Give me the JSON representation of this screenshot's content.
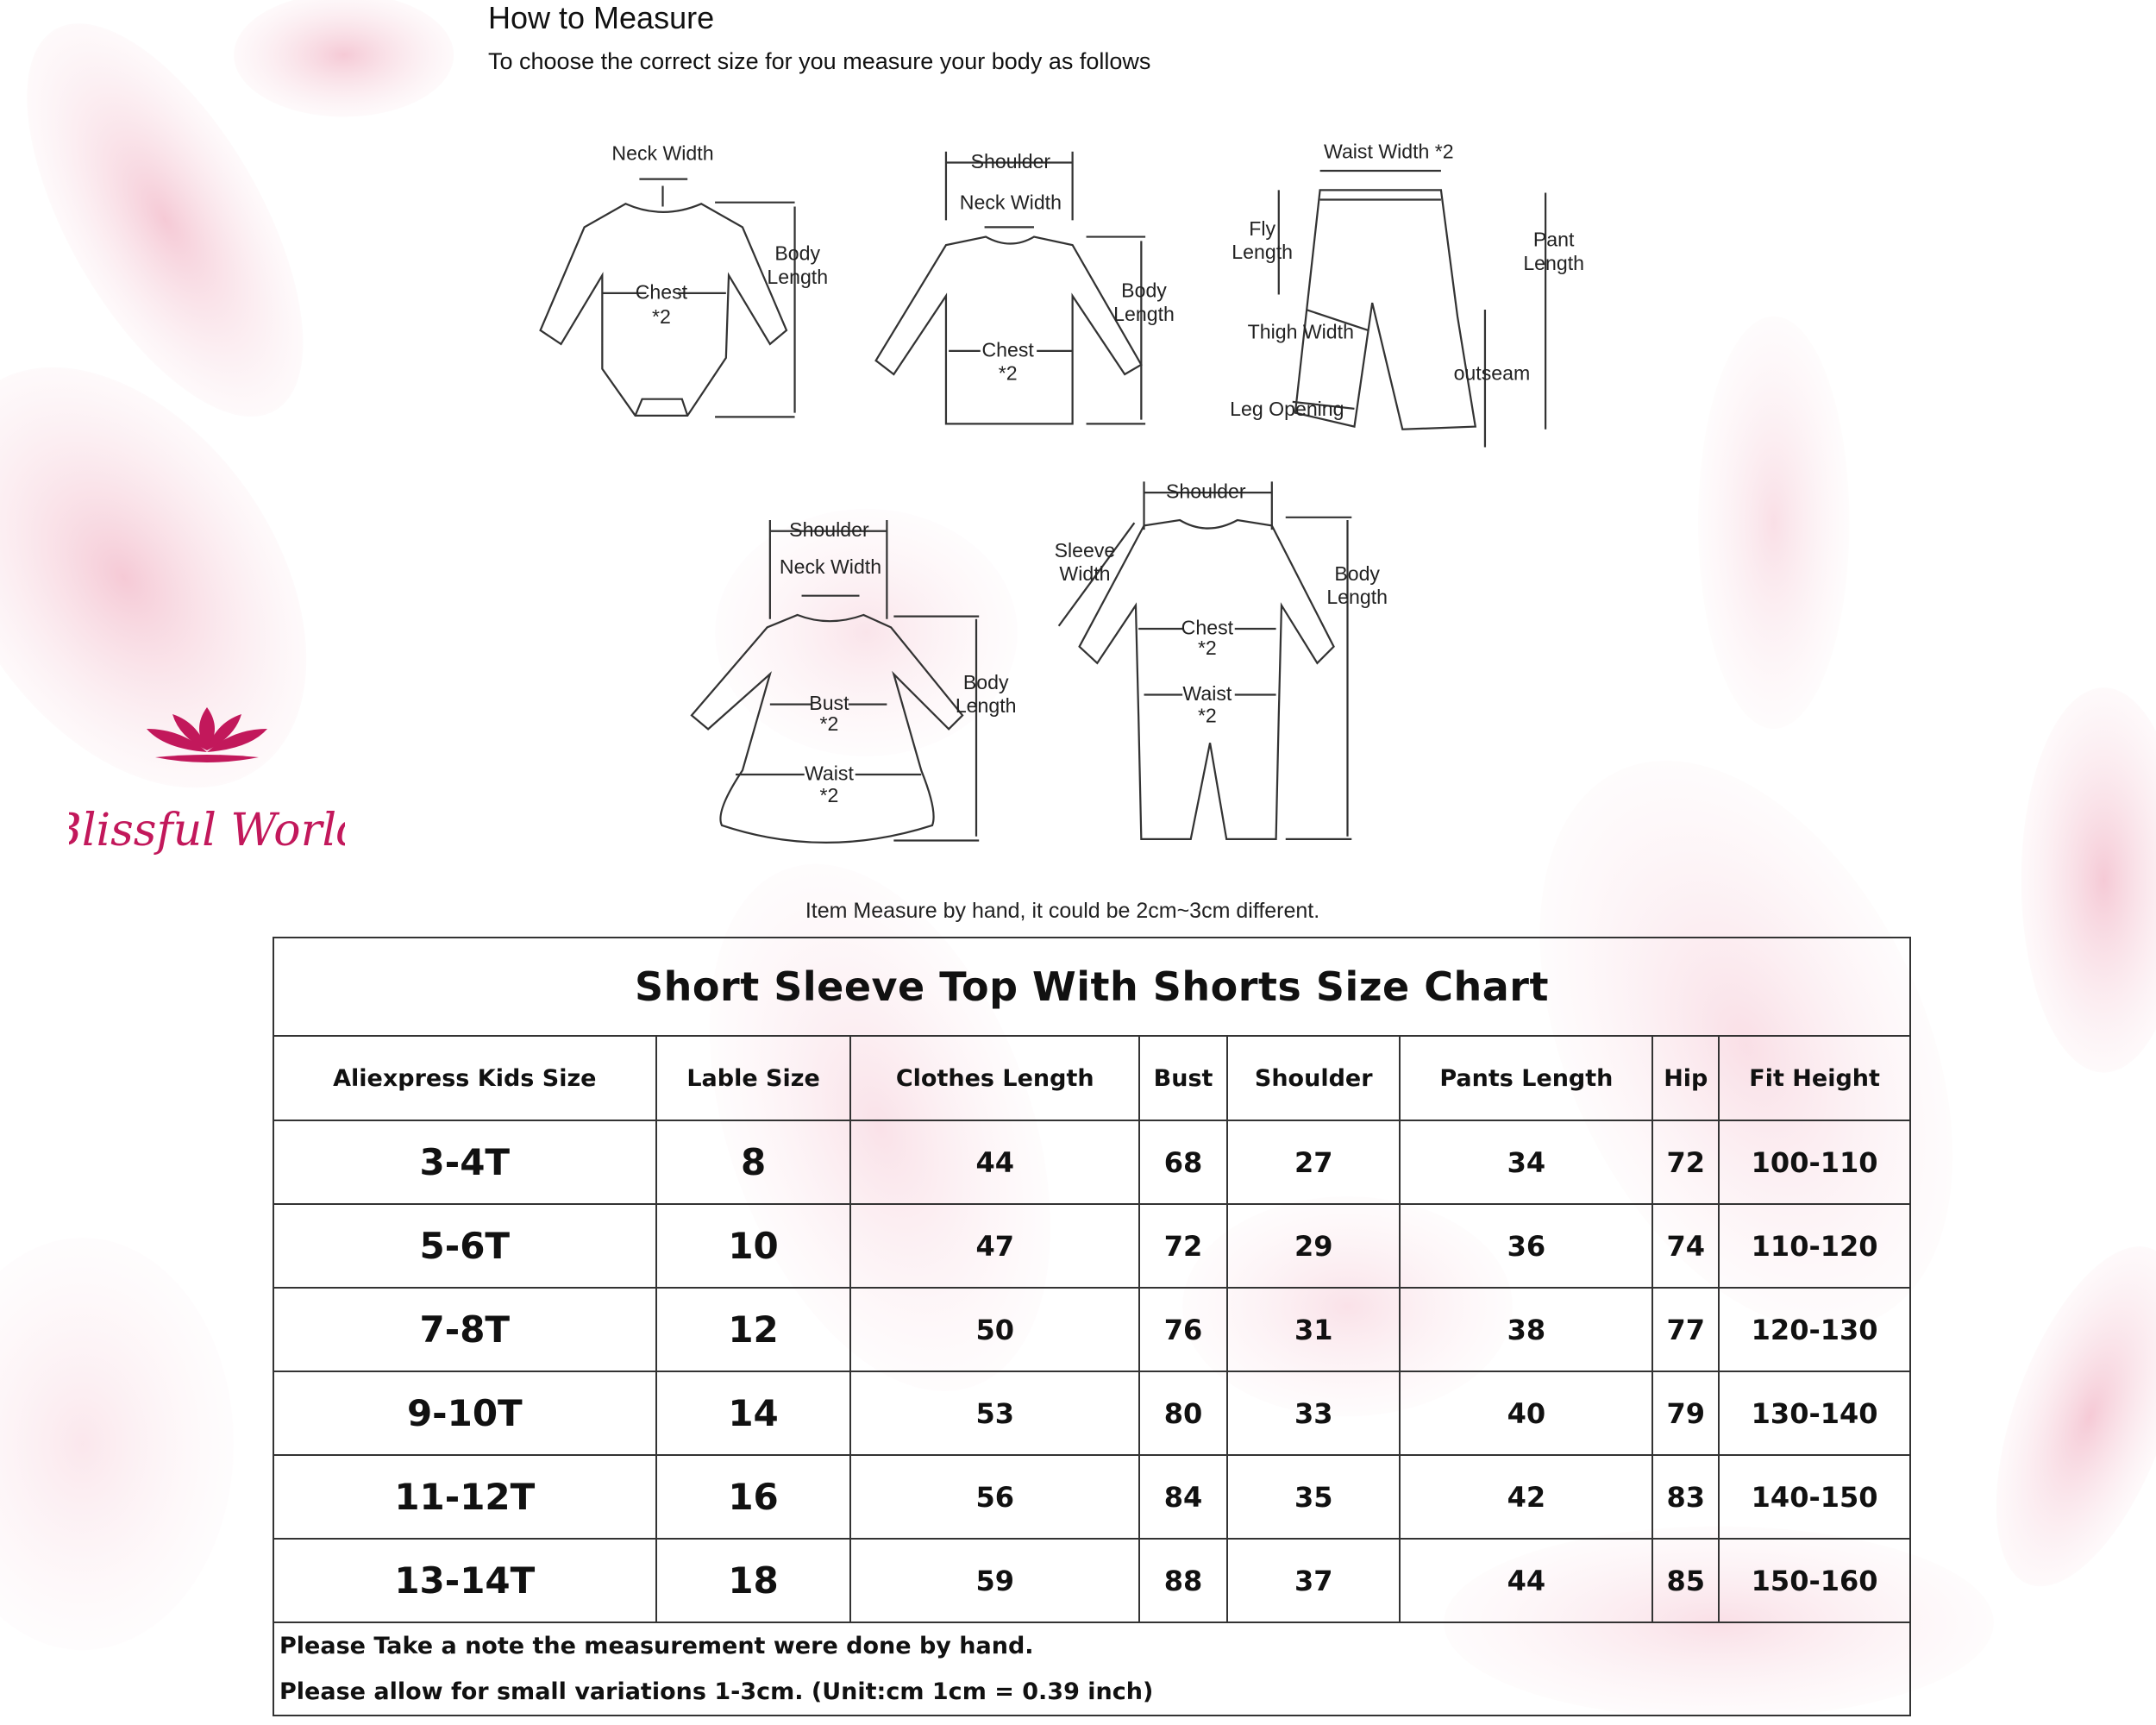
{
  "header": {
    "title": "How to Measure",
    "subtitle": "To choose the correct size for you measure your body as follows"
  },
  "diagrams": [
    {
      "labels": [
        [
          "Neck Width"
        ],
        [
          "Body",
          "Length"
        ],
        [
          "Chest"
        ],
        [
          "*2"
        ]
      ]
    },
    {
      "labels": [
        [
          "Shoulder"
        ],
        [
          "Neck Width"
        ],
        [
          "Body",
          "Length"
        ],
        [
          "Chest"
        ],
        [
          "*2"
        ]
      ]
    },
    {
      "labels": [
        [
          "Waist Width *2"
        ],
        [
          "Fly",
          "Length"
        ],
        [
          "Pant",
          "Length"
        ],
        [
          "Thigh Width"
        ],
        [
          "outseam"
        ],
        [
          "Leg Opening"
        ]
      ]
    },
    {
      "labels": [
        [
          "Shoulder"
        ],
        [
          "Neck Width"
        ],
        [
          "Body",
          "Length"
        ],
        [
          "Bust"
        ],
        [
          "*2"
        ],
        [
          "Waist"
        ],
        [
          "*2"
        ]
      ]
    },
    {
      "labels": [
        [
          "Shoulder"
        ],
        [
          "Sleeve",
          "Width"
        ],
        [
          "Body",
          "Length"
        ],
        [
          "Chest"
        ],
        [
          "*2"
        ],
        [
          "Waist"
        ],
        [
          "*2"
        ]
      ]
    }
  ],
  "note": "Item Measure by hand, it could be 2cm~3cm different.",
  "logo": {
    "text": "Blissful World",
    "color": "#c2185b"
  },
  "table": {
    "title": "Short Sleeve Top With Shorts Size Chart",
    "headers": [
      "Aliexpress Kids Size",
      "Lable Size",
      "Clothes Length",
      "Bust",
      "Shoulder",
      "Pants Length",
      "Hip",
      "Fit Height"
    ],
    "rows": [
      [
        "3-4T",
        "8",
        "44",
        "68",
        "27",
        "34",
        "72",
        "100-110"
      ],
      [
        "5-6T",
        "10",
        "47",
        "72",
        "29",
        "36",
        "74",
        "110-120"
      ],
      [
        "7-8T",
        "12",
        "50",
        "76",
        "31",
        "38",
        "77",
        "120-130"
      ],
      [
        "9-10T",
        "14",
        "53",
        "80",
        "33",
        "40",
        "79",
        "130-140"
      ],
      [
        "11-12T",
        "16",
        "56",
        "84",
        "35",
        "42",
        "83",
        "140-150"
      ],
      [
        "13-14T",
        "18",
        "59",
        "88",
        "37",
        "44",
        "85",
        "150-160"
      ]
    ],
    "footer": [
      "Please Take a note the measurement were done by hand.",
      "Please allow for small variations 1-3cm.   (Unit:cm   1cm = 0.39 inch)"
    ]
  },
  "colors": {
    "accent_pink": "#f3c6d2",
    "logo": "#c2185b"
  }
}
